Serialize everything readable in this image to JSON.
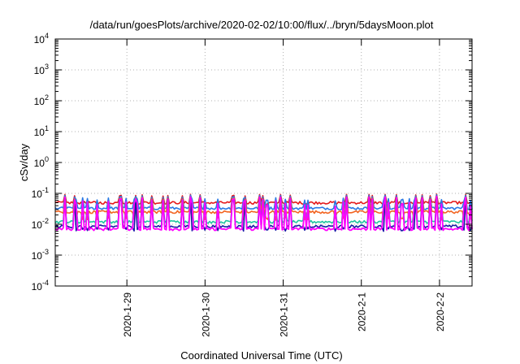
{
  "chart_data": {
    "type": "line",
    "title": "/data/run/goesPlots/archive/2020-02-02/10:00/flux/../bryn/5daysMoon.plot",
    "xlabel": "Coordinated Universal Time (UTC)",
    "ylabel": "cSv/day",
    "y_scale": "log",
    "ylim": [
      0.0001,
      10000
    ],
    "y_ticks": [
      {
        "base": "10",
        "exp": "-4",
        "value": 0.0001
      },
      {
        "base": "10",
        "exp": "-3",
        "value": 0.001
      },
      {
        "base": "10",
        "exp": "-2",
        "value": 0.01
      },
      {
        "base": "10",
        "exp": "-1",
        "value": 0.1
      },
      {
        "base": "10",
        "exp": "0",
        "value": 1
      },
      {
        "base": "10",
        "exp": "1",
        "value": 10
      },
      {
        "base": "10",
        "exp": "2",
        "value": 100
      },
      {
        "base": "10",
        "exp": "3",
        "value": 1000
      },
      {
        "base": "10",
        "exp": "4",
        "value": 10000
      }
    ],
    "x_start": "2020-01-28 02:00",
    "x_end": "2020-02-02 10:00",
    "x_ticks": [
      {
        "label": "2020-1-29",
        "value": "2020-01-29 00:00"
      },
      {
        "label": "2020-1-30",
        "value": "2020-01-30 00:00"
      },
      {
        "label": "2020-1-31",
        "value": "2020-01-31 00:00"
      },
      {
        "label": "2020-2-1",
        "value": "2020-02-01 00:00"
      },
      {
        "label": "2020-2-2",
        "value": "2020-02-02 00:00"
      }
    ],
    "grid": true,
    "legend": "none",
    "series": [
      {
        "color": "#e41a1c",
        "base": 0.05,
        "spike_max": 0.095,
        "dip_min": 0.045
      },
      {
        "color": "#2a78e4",
        "base": 0.033,
        "spike_max": 0.09,
        "dip_min": 0.022
      },
      {
        "color": "#f26522",
        "base": 0.025,
        "spike_max": 0.08,
        "dip_min": 0.015
      },
      {
        "color": "#20c4a0",
        "base": 0.012,
        "spike_max": 0.07,
        "dip_min": 0.01
      },
      {
        "color": "#1a1aa6",
        "base": 0.0085,
        "spike_max": 0.075,
        "dip_min": 0.0065
      },
      {
        "color": "#ff00ff",
        "base": 0.007,
        "spike_max": 0.08,
        "dip_min": 0.0045
      }
    ]
  }
}
